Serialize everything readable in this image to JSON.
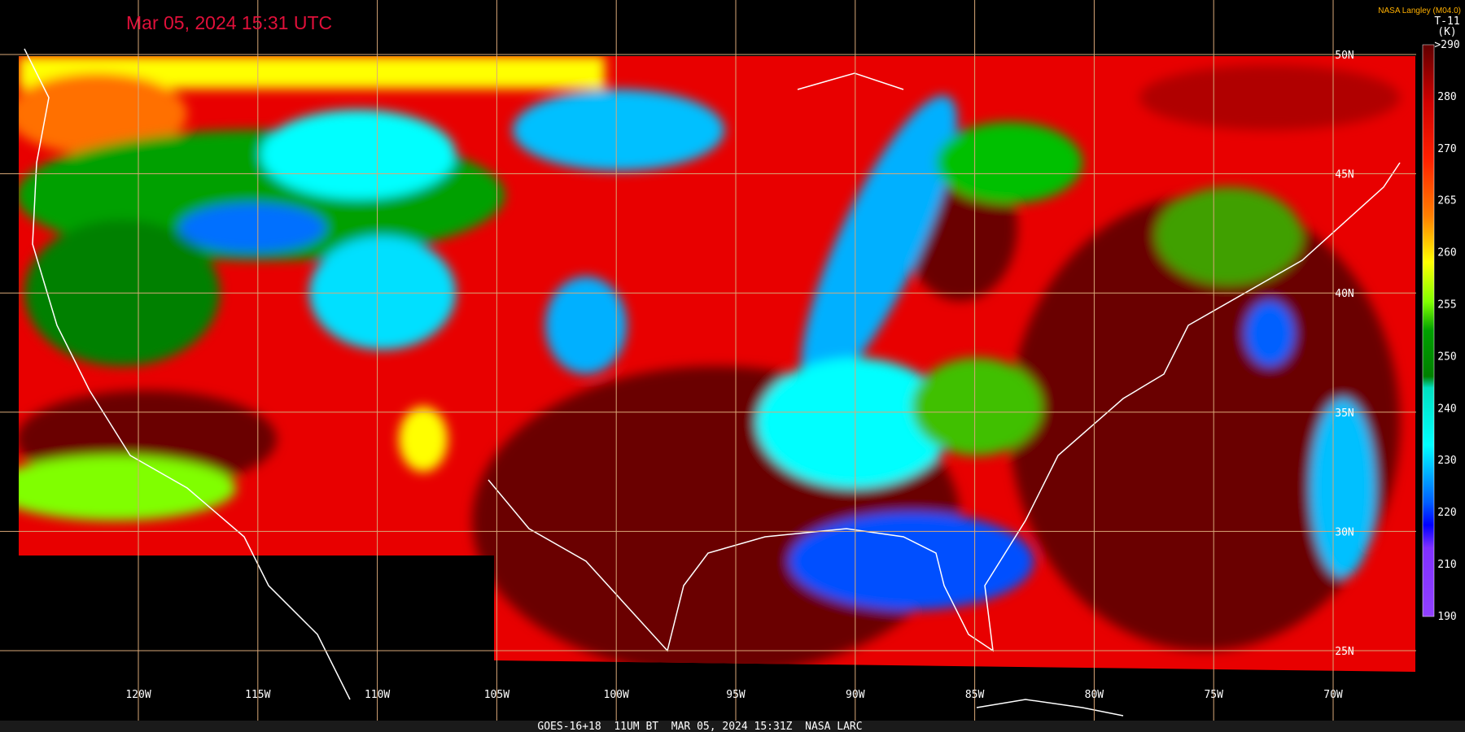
{
  "header": {
    "timestamp": "Mar 05, 2024 15:31 UTC",
    "producer": "NASA Langley (M04.0)"
  },
  "colorbar": {
    "title": "T-11",
    "unit": "(K)",
    "labels": [
      ">290",
      "280",
      "270",
      "265",
      "260",
      "255",
      "250",
      "240",
      "230",
      "220",
      "210",
      "190"
    ]
  },
  "grid": {
    "lon_labels": [
      "120W",
      "115W",
      "110W",
      "105W",
      "100W",
      "95W",
      "90W",
      "85W",
      "80W",
      "75W",
      "70W"
    ],
    "lat_labels": [
      "50N",
      "45N",
      "40N",
      "35N",
      "30N",
      "25N"
    ]
  },
  "footer": {
    "caption": "GOES-16+18  11UM BT  MAR 05, 2024 15:31Z  NASA LARC"
  }
}
